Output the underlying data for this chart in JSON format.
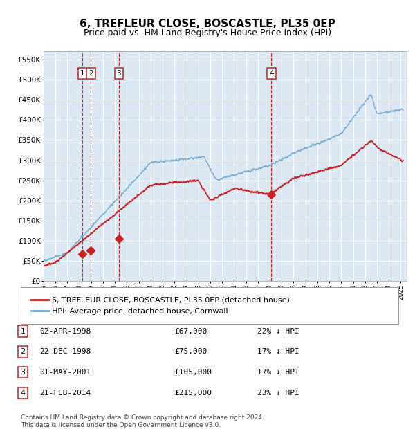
{
  "title": "6, TREFLEUR CLOSE, BOSCASTLE, PL35 0EP",
  "subtitle": "Price paid vs. HM Land Registry's House Price Index (HPI)",
  "title_fontsize": 11,
  "subtitle_fontsize": 9,
  "background_color": "#ffffff",
  "plot_bg_color": "#dce9f5",
  "grid_color": "#ffffff",
  "legend_label_red": "6, TREFLEUR CLOSE, BOSCASTLE, PL35 0EP (detached house)",
  "legend_label_blue": "HPI: Average price, detached house, Cornwall",
  "table_rows": [
    [
      "1",
      "02-APR-1998",
      "£67,000",
      "22% ↓ HPI"
    ],
    [
      "2",
      "22-DEC-1998",
      "£75,000",
      "17% ↓ HPI"
    ],
    [
      "3",
      "01-MAY-2001",
      "£105,000",
      "17% ↓ HPI"
    ],
    [
      "4",
      "21-FEB-2014",
      "£215,000",
      "23% ↓ HPI"
    ]
  ],
  "footer": "Contains HM Land Registry data © Crown copyright and database right 2024.\nThis data is licensed under the Open Government Licence v3.0.",
  "sales": [
    {
      "year": 1998.25,
      "price": 67000,
      "label": "1"
    },
    {
      "year": 1998.97,
      "price": 75000,
      "label": "2"
    },
    {
      "year": 2001.33,
      "price": 105000,
      "label": "3"
    },
    {
      "year": 2014.13,
      "price": 215000,
      "label": "4"
    }
  ],
  "vlines": [
    1998.25,
    1998.97,
    2001.33,
    2014.13
  ],
  "ylim": [
    0,
    570000
  ],
  "yticks": [
    0,
    50000,
    100000,
    150000,
    200000,
    250000,
    300000,
    350000,
    400000,
    450000,
    500000,
    550000
  ],
  "xlim_start": 1995.0,
  "xlim_end": 2025.5
}
